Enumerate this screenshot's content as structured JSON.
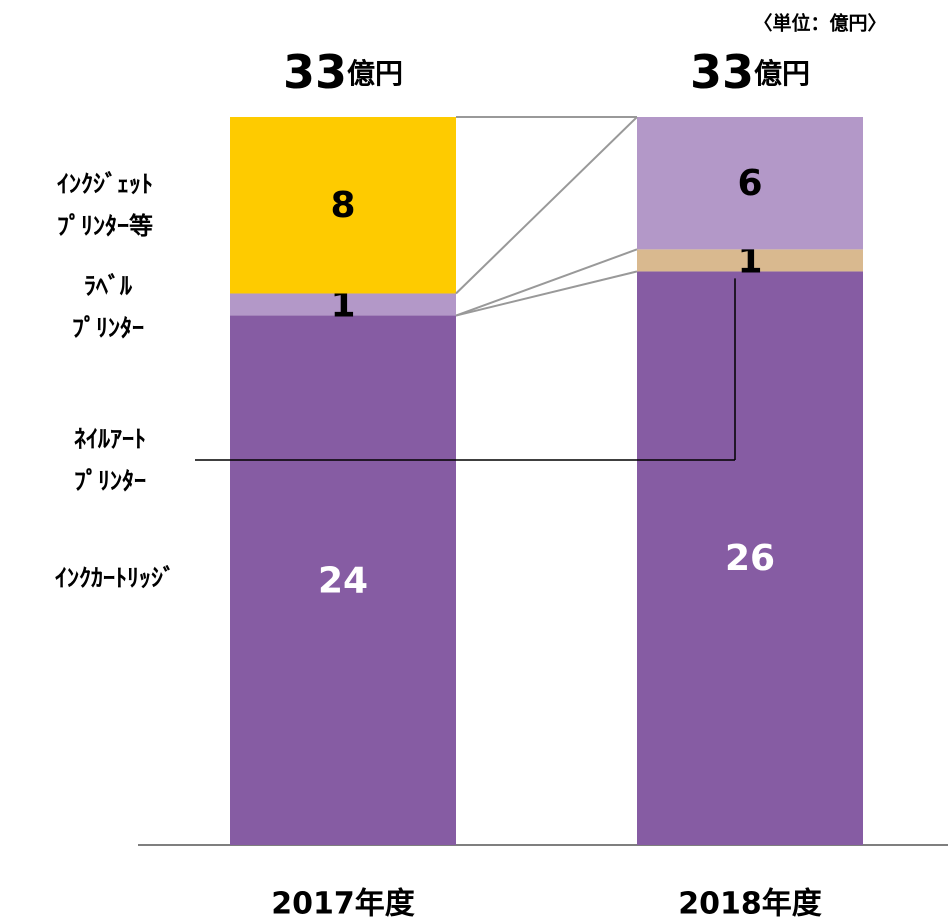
{
  "chart_data": {
    "type": "stacked_bar",
    "unit_note": "〈単位：億円〉",
    "categories": [
      "2017年度",
      "2018年度"
    ],
    "totals": [
      33,
      33
    ],
    "total_unit": "億円",
    "ylim": [
      0,
      33
    ],
    "series": [
      {
        "name": "ｲﾝｸｶｰﾄﾘｯｼﾞ",
        "color": "#865ca3",
        "label_color": "#ffffff",
        "values": [
          24,
          26
        ]
      },
      {
        "name": "ﾈｲﾙｱｰﾄ\nﾌﾟﾘﾝﾀｰ",
        "color": "#d9b98f",
        "label_color": "#000000",
        "values": [
          null,
          1
        ]
      },
      {
        "name": "ﾗﾍﾞﾙ\nﾌﾟﾘﾝﾀｰ",
        "color": "#b398c8",
        "label_color": "#000000",
        "values": [
          1,
          6
        ]
      },
      {
        "name": "ｲﾝｸｼﾞｪｯﾄ\nﾌﾟﾘﾝﾀｰ等",
        "color": "#fecb00",
        "label_color": "#000000",
        "values": [
          8,
          null
        ]
      }
    ]
  }
}
